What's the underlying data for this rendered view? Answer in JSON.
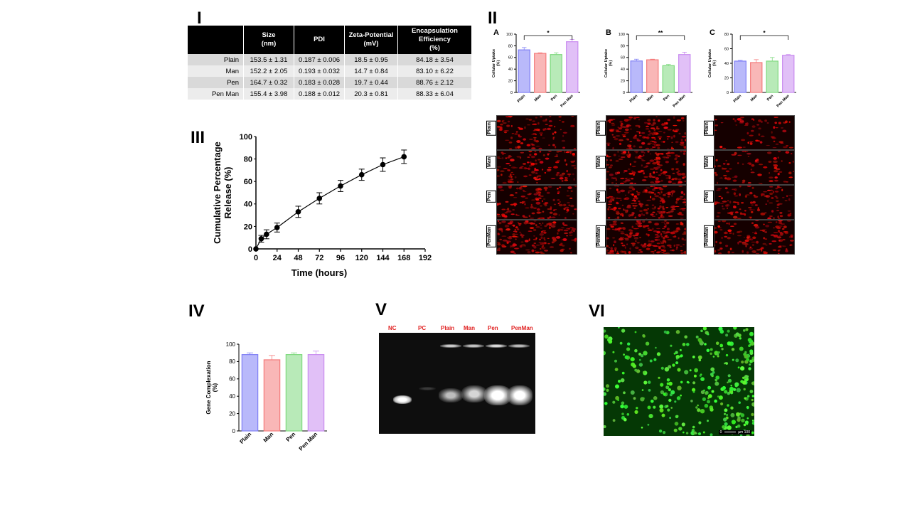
{
  "panels": {
    "I": "I",
    "II": "II",
    "III": "III",
    "IV": "IV",
    "V": "V",
    "VI": "VI",
    "sub_a": "A",
    "sub_b": "B",
    "sub_c": "C"
  },
  "table": {
    "headers": [
      "",
      "Size\n(nm)",
      "PDI",
      "Zeta-Potential\n(mV)",
      "Encapsulation Efficiency\n(%)"
    ],
    "rows": [
      [
        "Plain",
        "153.5 ± 1.31",
        "0.187 ± 0.006",
        "18.5 ± 0.95",
        "84.18 ± 3.54"
      ],
      [
        "Man",
        "152.2 ± 2.05",
        "0.193 ± 0.032",
        "14.7 ± 0.84",
        "83.10 ± 6.22"
      ],
      [
        "Pen",
        "164.7 ± 0.32",
        "0.183 ± 0.028",
        "19.7 ± 0.44",
        "88.76 ± 2.12"
      ],
      [
        "Pen Man",
        "155.4 ± 3.98",
        "0.188 ± 0.012",
        "20.3 ± 0.81",
        "88.33 ± 6.04"
      ]
    ]
  },
  "colors": {
    "plain": "#7f7ff5",
    "man": "#f47b7b",
    "pen": "#7ed97e",
    "penman": "#c98cf0"
  },
  "micro_labels": [
    "Plain",
    "Man",
    "Pen",
    "PenMan"
  ],
  "gel": {
    "lanes": [
      "NC",
      "PC",
      "Plain",
      "Man",
      "Pen",
      "PenMan"
    ]
  },
  "scale_bar": {
    "left": "0",
    "unit": "µm",
    "right": "100"
  },
  "chart_data": [
    {
      "id": "uptake_A",
      "type": "bar",
      "categories": [
        "Plain",
        "Man",
        "Pen",
        "Pen Man"
      ],
      "values": [
        73,
        67,
        65,
        87
      ],
      "errors": [
        4,
        1,
        3,
        4
      ],
      "ylabel": "Cellular Uptake\n(%)",
      "ylim": [
        0,
        100
      ],
      "yticks": [
        0,
        20,
        40,
        60,
        80,
        100
      ],
      "significance": {
        "from": 0,
        "to": 3,
        "label": "*"
      }
    },
    {
      "id": "uptake_B",
      "type": "bar",
      "categories": [
        "Plain",
        "Man",
        "Pen",
        "Pen Man"
      ],
      "values": [
        54,
        56,
        46,
        65
      ],
      "errors": [
        3,
        1,
        2,
        4
      ],
      "ylabel": "Cellular Uptake\n(%)",
      "ylim": [
        0,
        100
      ],
      "yticks": [
        0,
        20,
        40,
        60,
        80,
        100
      ],
      "significance": {
        "from": 0,
        "to": 3,
        "label": "**"
      }
    },
    {
      "id": "uptake_C",
      "type": "bar",
      "categories": [
        "Plain",
        "Man",
        "Pen",
        "Pen Man"
      ],
      "values": [
        43,
        41,
        43,
        51
      ],
      "errors": [
        1,
        4,
        5,
        1
      ],
      "ylabel": "Cellular Uptake\n(%)",
      "ylim": [
        0,
        80
      ],
      "yticks": [
        0,
        20,
        40,
        60,
        80
      ],
      "significance": {
        "from": 0,
        "to": 3,
        "label": "*"
      }
    },
    {
      "id": "release",
      "type": "line",
      "x": [
        0,
        6,
        12,
        24,
        48,
        72,
        96,
        120,
        144,
        168
      ],
      "y": [
        0,
        9,
        13,
        19,
        33,
        45,
        56,
        66,
        75,
        82
      ],
      "errors": [
        0,
        3,
        4,
        4,
        5,
        5,
        5,
        5,
        6,
        6
      ],
      "xlabel": "Time (hours)",
      "ylabel": "Cumulative Percentage\nRelease (%)",
      "xlim": [
        0,
        192
      ],
      "ylim": [
        0,
        100
      ],
      "xticks": [
        0,
        24,
        48,
        72,
        96,
        120,
        144,
        168,
        192
      ],
      "yticks": [
        0,
        20,
        40,
        60,
        80,
        100
      ]
    },
    {
      "id": "complexation",
      "type": "bar",
      "categories": [
        "Plain",
        "Man",
        "Pen",
        "Pen Man"
      ],
      "values": [
        88,
        82,
        88,
        88
      ],
      "errors": [
        2,
        5,
        2,
        4
      ],
      "ylabel": "Gene Complexation\n(%)",
      "ylim": [
        0,
        100
      ],
      "yticks": [
        0,
        20,
        40,
        60,
        80,
        100
      ]
    }
  ]
}
